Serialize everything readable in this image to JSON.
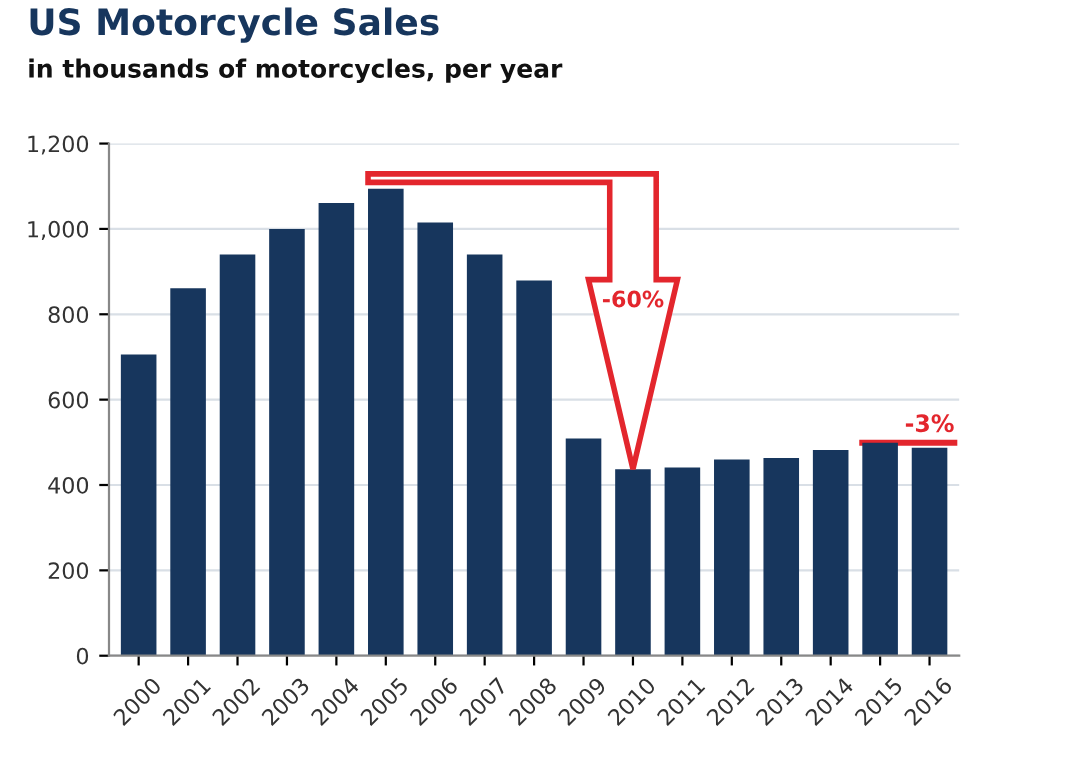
{
  "chart_data": {
    "type": "bar",
    "title": "US Motorcycle Sales",
    "subtitle": "in thousands of motorcycles, per year",
    "categories": [
      "2000",
      "2001",
      "2002",
      "2003",
      "2004",
      "2005",
      "2006",
      "2007",
      "2008",
      "2009",
      "2010",
      "2011",
      "2012",
      "2013",
      "2014",
      "2015",
      "2016"
    ],
    "values": [
      706,
      861,
      940,
      1000,
      1061,
      1094,
      1015,
      940,
      879,
      509,
      437,
      441,
      460,
      463,
      482,
      499,
      487
    ],
    "color": "#17365d",
    "ylim": [
      0,
      1200
    ],
    "yticks": [
      0,
      200,
      400,
      600,
      800,
      {
        "value": 1000,
        "label": "1,000"
      },
      {
        "value": 1200,
        "label": "1,200"
      }
    ],
    "grid": "y",
    "annotations": [
      "-60%",
      {
        "text": "-3%",
        "x": "2015",
        "y": 499
      }
    ]
  }
}
